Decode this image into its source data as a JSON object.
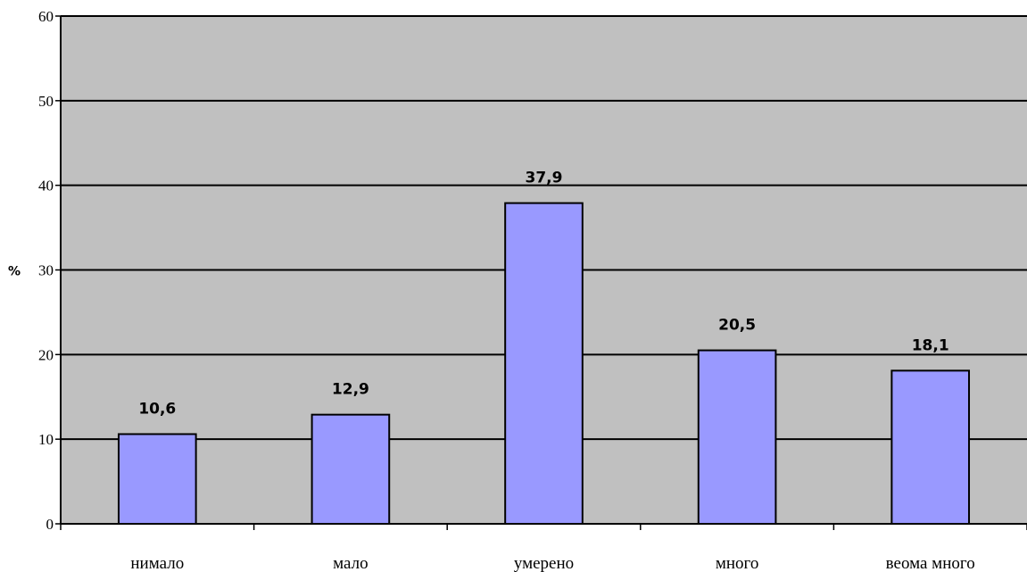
{
  "chart_data": {
    "type": "bar",
    "categories": [
      "нимало",
      "мало",
      "умерено",
      "много",
      "веома много"
    ],
    "values": [
      10.6,
      12.9,
      37.9,
      20.5,
      18.1
    ],
    "value_labels": [
      "10,6",
      "12,9",
      "37,9",
      "20,5",
      "18,1"
    ],
    "title": "",
    "xlabel": "",
    "ylabel": "%",
    "ylim": [
      0,
      60
    ],
    "yticks": [
      0,
      10,
      20,
      30,
      40,
      50,
      60
    ],
    "grid": true,
    "colors": {
      "plot_background": "#c0c0c0",
      "bar_fill": "#9999ff",
      "bar_stroke": "#000000",
      "gridline": "#000000"
    }
  }
}
